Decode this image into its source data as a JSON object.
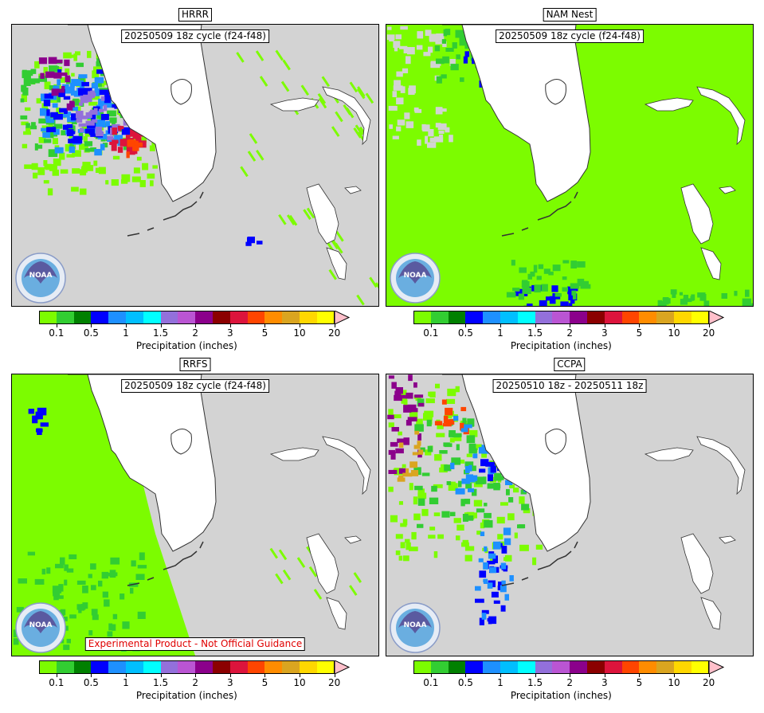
{
  "panels": [
    {
      "title": "HRRR",
      "cycle": "20250509 18z cycle (f24-f48)",
      "style": "hrrr"
    },
    {
      "title": "NAM Nest",
      "cycle": "20250509 18z cycle (f24-f48)",
      "style": "nam"
    },
    {
      "title": "RRFS",
      "cycle": "20250509 18z cycle (f24-f48)",
      "style": "rrfs"
    },
    {
      "title": "CCPA",
      "cycle": "20250510 18z - 20250511 18z",
      "style": "ccpa"
    }
  ],
  "colorbar": {
    "label": "Precipitation (inches)",
    "ticks": [
      "0.1",
      "0.5",
      "1",
      "1.5",
      "2",
      "3",
      "5",
      "10",
      "20"
    ],
    "colors": [
      "#7cfc00",
      "#32cd32",
      "#008000",
      "#0000ff",
      "#1e90ff",
      "#00bfff",
      "#00ffff",
      "#9370db",
      "#ba55d3",
      "#8b008b",
      "#8b0000",
      "#dc143c",
      "#ff4500",
      "#ff8c00",
      "#daa520",
      "#ffd700",
      "#ffff00"
    ],
    "extend_color": "#ffc0cb"
  },
  "logo": {
    "text": "NOAA",
    "icon": "noaa-logo"
  },
  "disclaimer": "Experimental Product - Not Official Guidance",
  "colors": {
    "land_nodata": "#d3d3d3",
    "water": "#ffffff"
  }
}
